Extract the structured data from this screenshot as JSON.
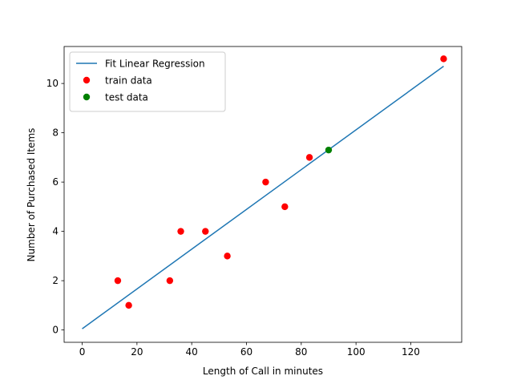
{
  "chart_data": {
    "type": "scatter",
    "title": "",
    "xlabel": "Length of Call in minutes",
    "ylabel": "Number of Purchased Items",
    "xlim": [
      -6.6,
      138.6
    ],
    "ylim": [
      -0.5,
      11.5
    ],
    "xticks": [
      0,
      20,
      40,
      60,
      80,
      100,
      120
    ],
    "yticks": [
      0,
      2,
      4,
      6,
      8,
      10
    ],
    "grid": false,
    "legend": {
      "location": "upper-left",
      "entries": [
        "Fit Linear Regression",
        "train data",
        "test data"
      ]
    },
    "series": [
      {
        "name": "Fit Linear Regression",
        "kind": "line",
        "color": "#1f77b4",
        "points": [
          {
            "x": 0,
            "y": 0.05
          },
          {
            "x": 132,
            "y": 10.7
          }
        ]
      },
      {
        "name": "train data",
        "kind": "scatter",
        "color": "#ff0000",
        "points": [
          {
            "x": 13,
            "y": 2
          },
          {
            "x": 17,
            "y": 1
          },
          {
            "x": 32,
            "y": 2
          },
          {
            "x": 36,
            "y": 4
          },
          {
            "x": 45,
            "y": 4
          },
          {
            "x": 53,
            "y": 3
          },
          {
            "x": 67,
            "y": 6
          },
          {
            "x": 74,
            "y": 5
          },
          {
            "x": 83,
            "y": 7
          },
          {
            "x": 132,
            "y": 11
          }
        ]
      },
      {
        "name": "test data",
        "kind": "scatter",
        "color": "#008000",
        "points": [
          {
            "x": 90,
            "y": 7.3
          }
        ]
      }
    ]
  }
}
